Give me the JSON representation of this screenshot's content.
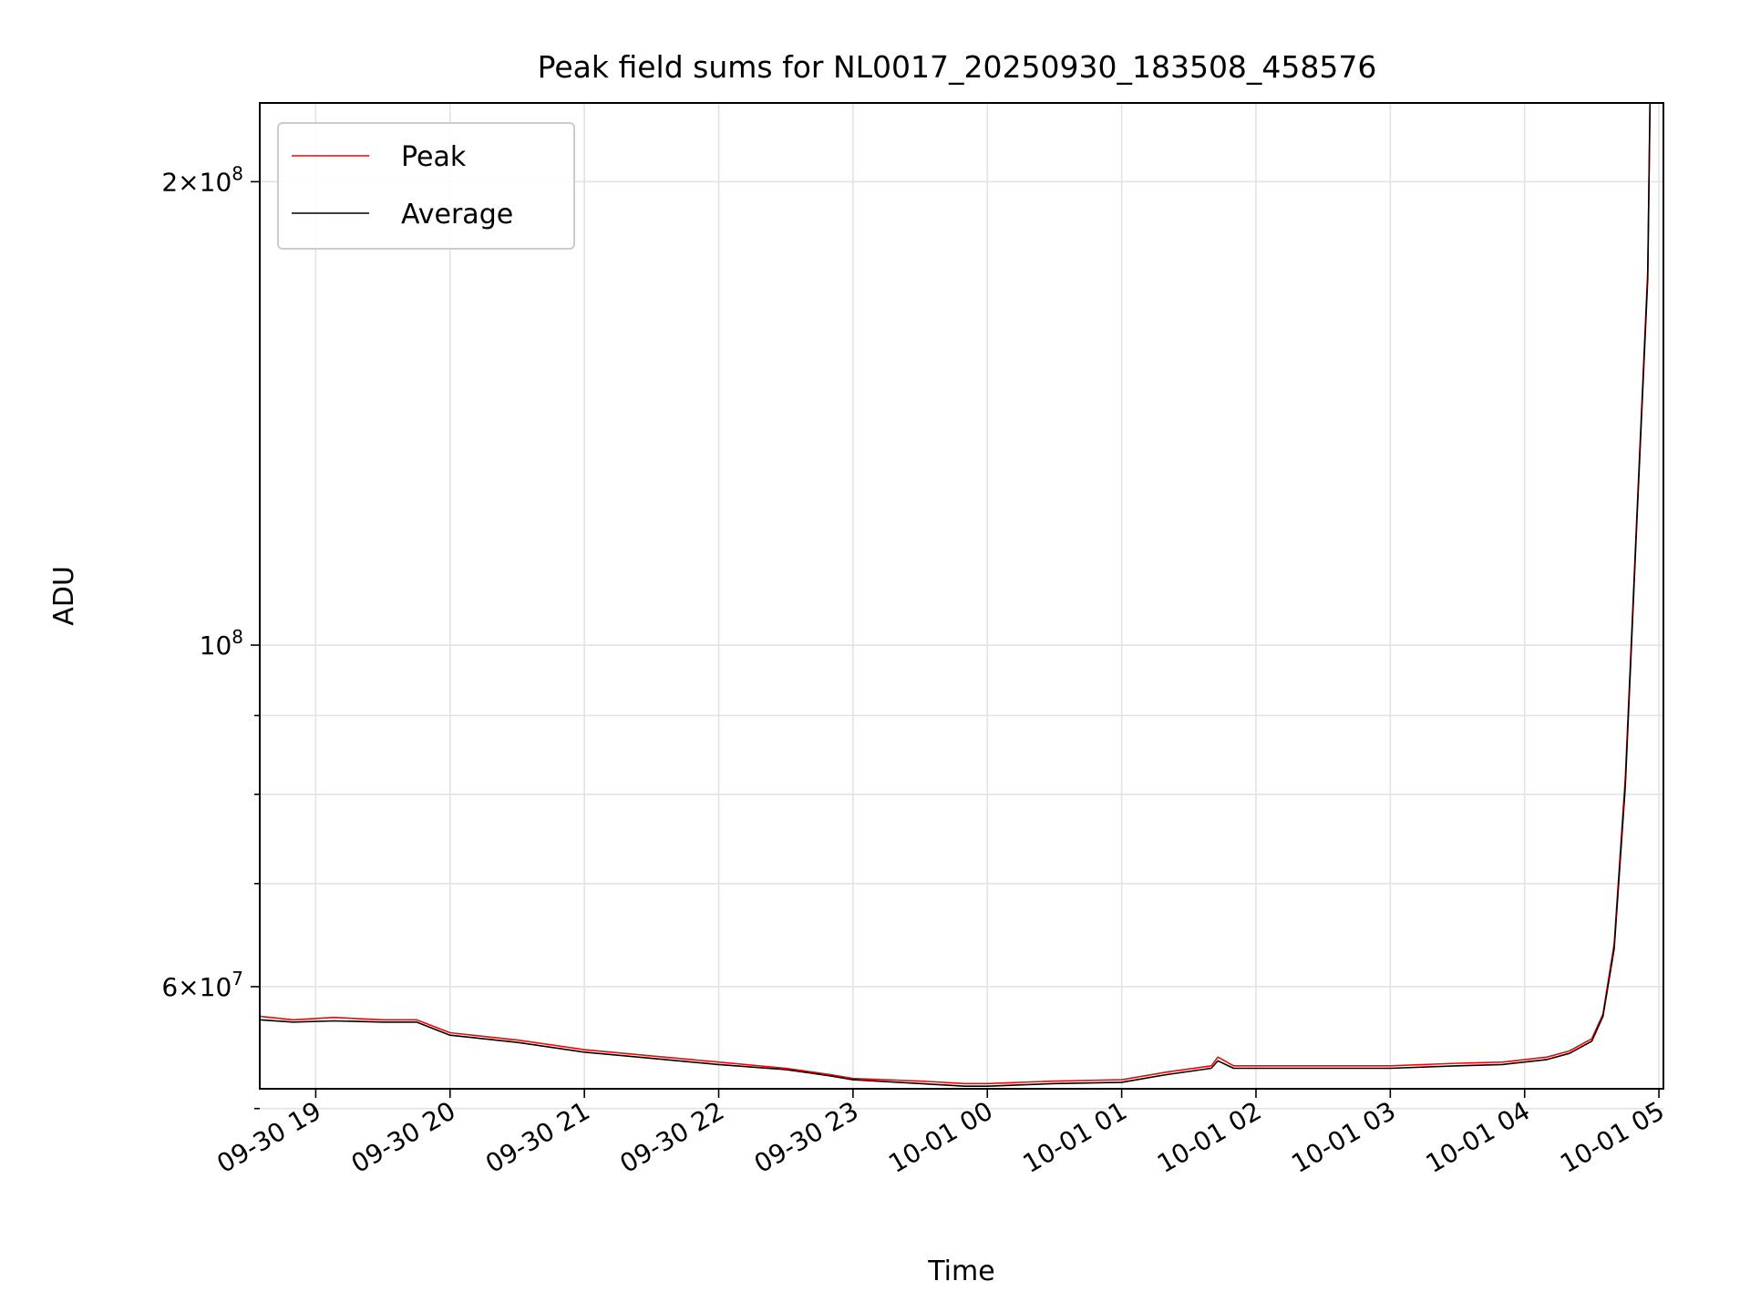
{
  "chart_data": {
    "type": "line",
    "title": "Peak field sums for NL0017_20250930_183508_458576",
    "xlabel": "Time",
    "ylabel": "ADU",
    "yscale": "log",
    "xlim": [
      "2025-09-30 18:35",
      "2025-10-01 05:02"
    ],
    "ylim": [
      51500000,
      225000000
    ],
    "grid": true,
    "legend_position": "upper-left",
    "x_ticks": [
      "09-30 19",
      "09-30 20",
      "09-30 21",
      "09-30 22",
      "09-30 23",
      "10-01 00",
      "10-01 01",
      "10-01 02",
      "10-01 03",
      "10-01 04",
      "10-01 05"
    ],
    "x_tick_times": [
      "2025-09-30 19:00",
      "2025-09-30 20:00",
      "2025-09-30 21:00",
      "2025-09-30 22:00",
      "2025-09-30 23:00",
      "2025-10-01 00:00",
      "2025-10-01 01:00",
      "2025-10-01 02:00",
      "2025-10-01 03:00",
      "2025-10-01 04:00",
      "2025-10-01 05:00"
    ],
    "y_major_ticks": [
      {
        "value": 60000000,
        "mantissa": "6",
        "exponent": "7"
      },
      {
        "value": 100000000,
        "mantissa": "",
        "exponent": "8"
      },
      {
        "value": 200000000,
        "mantissa": "2",
        "exponent": "8"
      }
    ],
    "y_minor_ticks": [
      50000000,
      70000000,
      80000000,
      90000000
    ],
    "series": [
      {
        "name": "Peak",
        "color": "#ff0000",
        "x": [
          "2025-09-30 18:35",
          "2025-09-30 18:50",
          "2025-09-30 19:08",
          "2025-09-30 19:30",
          "2025-09-30 19:45",
          "2025-09-30 20:00",
          "2025-09-30 20:30",
          "2025-09-30 21:00",
          "2025-09-30 21:30",
          "2025-09-30 22:00",
          "2025-09-30 22:30",
          "2025-09-30 22:50",
          "2025-09-30 23:00",
          "2025-09-30 23:30",
          "2025-09-30 23:50",
          "2025-10-01 00:00",
          "2025-10-01 00:30",
          "2025-10-01 01:00",
          "2025-10-01 01:20",
          "2025-10-01 01:40",
          "2025-10-01 01:43",
          "2025-10-01 01:50",
          "2025-10-01 02:00",
          "2025-10-01 02:30",
          "2025-10-01 03:00",
          "2025-10-01 03:30",
          "2025-10-01 03:50",
          "2025-10-01 04:10",
          "2025-10-01 04:20",
          "2025-10-01 04:30",
          "2025-10-01 04:35",
          "2025-10-01 04:40",
          "2025-10-01 04:45",
          "2025-10-01 04:50",
          "2025-10-01 04:55",
          "2025-10-01 04:56"
        ],
        "y": [
          57400000,
          57100000,
          57300000,
          57100000,
          57100000,
          56000000,
          55400000,
          54600000,
          54100000,
          53600000,
          53100000,
          52600000,
          52300000,
          52100000,
          51900000,
          51900000,
          52100000,
          52200000,
          52800000,
          53300000,
          54000000,
          53300000,
          53300000,
          53300000,
          53300000,
          53500000,
          53600000,
          54000000,
          54500000,
          55500000,
          57600000,
          64000000,
          82000000,
          120000000,
          175000000,
          225000000
        ]
      },
      {
        "name": "Average",
        "color": "#000000",
        "x": [
          "2025-09-30 18:35",
          "2025-09-30 18:50",
          "2025-09-30 19:08",
          "2025-09-30 19:30",
          "2025-09-30 19:45",
          "2025-09-30 20:00",
          "2025-09-30 20:30",
          "2025-09-30 21:00",
          "2025-09-30 21:30",
          "2025-09-30 22:00",
          "2025-09-30 22:30",
          "2025-09-30 22:50",
          "2025-09-30 23:00",
          "2025-09-30 23:30",
          "2025-09-30 23:50",
          "2025-10-01 00:00",
          "2025-10-01 00:30",
          "2025-10-01 01:00",
          "2025-10-01 01:20",
          "2025-10-01 01:40",
          "2025-10-01 01:43",
          "2025-10-01 01:50",
          "2025-10-01 02:00",
          "2025-10-01 02:30",
          "2025-10-01 03:00",
          "2025-10-01 03:30",
          "2025-10-01 03:50",
          "2025-10-01 04:10",
          "2025-10-01 04:20",
          "2025-10-01 04:30",
          "2025-10-01 04:35",
          "2025-10-01 04:40",
          "2025-10-01 04:45",
          "2025-10-01 04:50",
          "2025-10-01 04:55",
          "2025-10-01 04:56"
        ],
        "y": [
          57100000,
          56900000,
          57000000,
          56900000,
          56900000,
          55800000,
          55200000,
          54400000,
          53900000,
          53400000,
          53000000,
          52500000,
          52200000,
          51900000,
          51700000,
          51700000,
          51900000,
          52000000,
          52600000,
          53100000,
          53700000,
          53100000,
          53100000,
          53100000,
          53100000,
          53300000,
          53400000,
          53800000,
          54300000,
          55300000,
          57400000,
          63500000,
          81000000,
          119000000,
          173000000,
          225000000
        ]
      }
    ]
  }
}
